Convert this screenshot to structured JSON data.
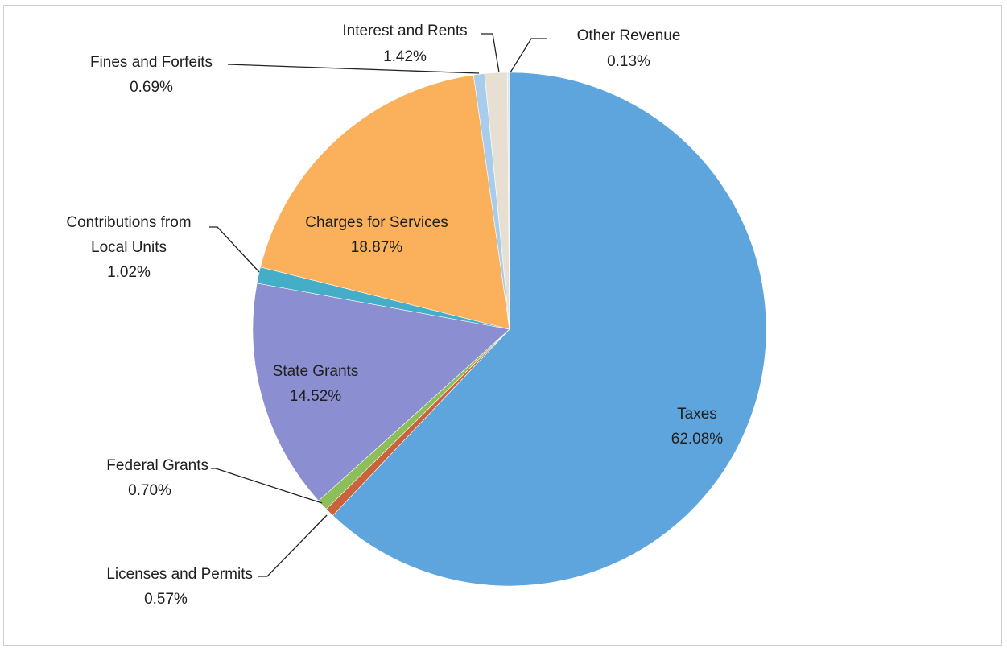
{
  "chart_data": {
    "type": "pie",
    "start_angle_deg": 0,
    "direction": "clockwise",
    "slices": [
      {
        "label": "Taxes",
        "value": 62.08,
        "display": "62.08%",
        "color": "#5ea5dd",
        "label_placement": "inside"
      },
      {
        "label": "Licenses and Permits",
        "value": 0.57,
        "display": "0.57%",
        "color": "#c9633b",
        "label_placement": "outside"
      },
      {
        "label": "Federal Grants",
        "value": 0.7,
        "display": "0.70%",
        "color": "#8cbf58",
        "label_placement": "outside"
      },
      {
        "label": "State Grants",
        "value": 14.52,
        "display": "14.52%",
        "color": "#8b8ed0",
        "label_placement": "inside"
      },
      {
        "label": "Contributions from Local Units",
        "value": 1.02,
        "display": "1.02%",
        "color": "#44aec9",
        "label_placement": "outside"
      },
      {
        "label": "Charges for Services",
        "value": 18.87,
        "display": "18.87%",
        "color": "#fbb15c",
        "label_placement": "inside"
      },
      {
        "label": "Fines and Forfeits",
        "value": 0.69,
        "display": "0.69%",
        "color": "#a8cdec",
        "label_placement": "outside"
      },
      {
        "label": "Interest and Rents",
        "value": 1.42,
        "display": "1.42%",
        "color": "#e7e0d2",
        "label_placement": "outside"
      },
      {
        "label": "Other Revenue",
        "value": 0.13,
        "display": "0.13%",
        "color": "#d9e6f2",
        "label_placement": "outside"
      }
    ]
  }
}
